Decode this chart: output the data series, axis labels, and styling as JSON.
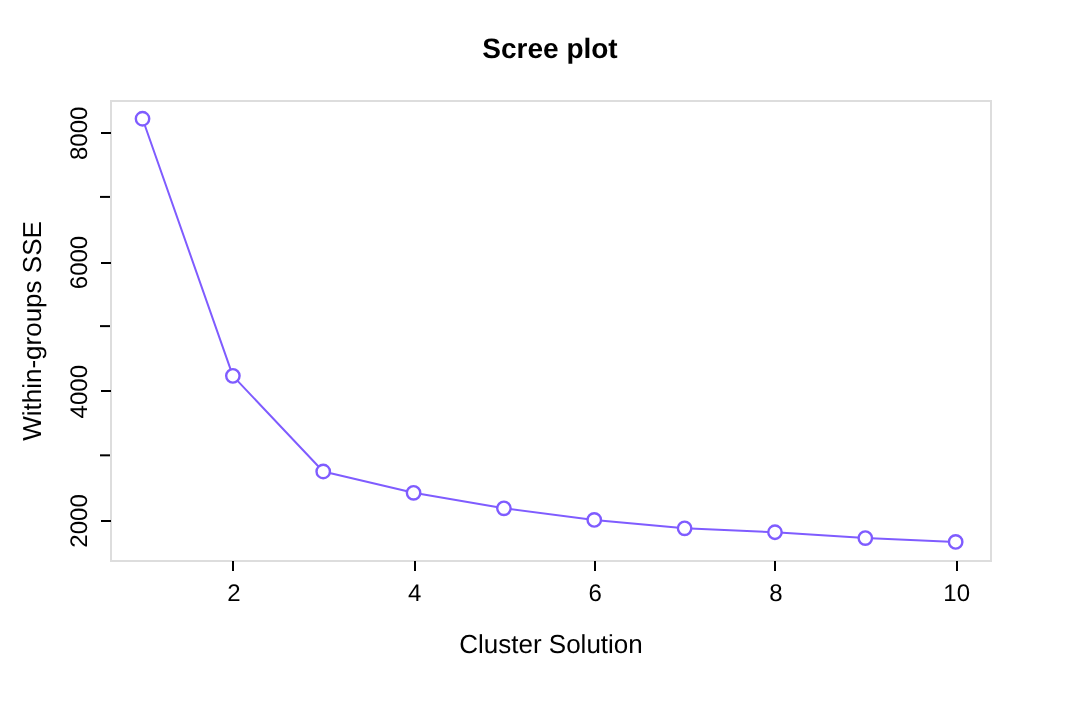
{
  "chart_data": {
    "type": "line",
    "title": "Scree plot",
    "xlabel": "Cluster Solution",
    "ylabel": "Within-groups SSE",
    "x": [
      1,
      2,
      3,
      4,
      5,
      6,
      7,
      8,
      9,
      10
    ],
    "series": [
      {
        "color": "#7f5cff",
        "values": [
          8210,
          4230,
          2750,
          2420,
          2180,
          2000,
          1870,
          1810,
          1720,
          1660
        ]
      }
    ],
    "xlim": [
      0.64,
      10.38
    ],
    "ylim": [
      1380,
      8500
    ],
    "xticks": [
      2,
      4,
      6,
      8,
      10
    ],
    "yticks": [
      2000,
      {
        "value": 3000,
        "label": null
      },
      4000,
      {
        "value": 5000,
        "label": null
      },
      6000,
      {
        "value": 7000,
        "label": null
      },
      8000
    ],
    "marker": "circle",
    "grid": false
  }
}
